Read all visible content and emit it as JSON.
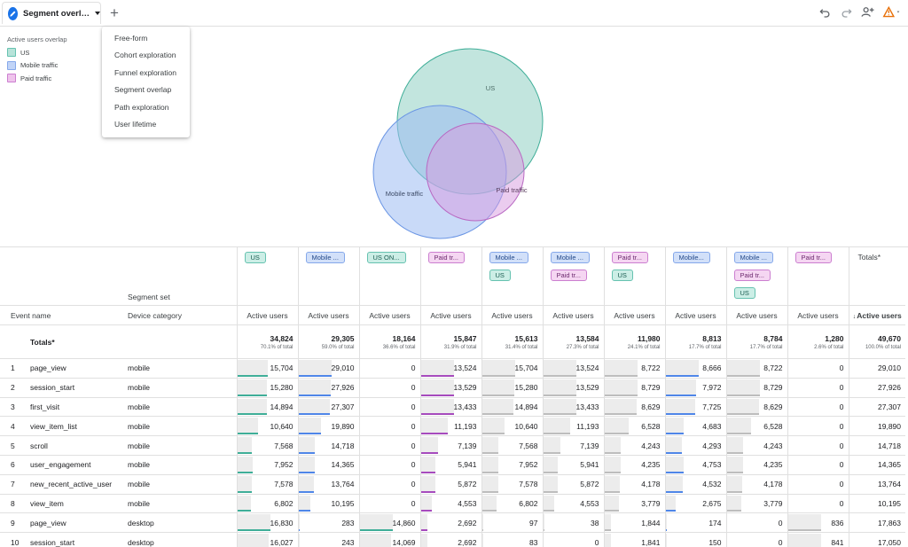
{
  "tab": {
    "title": "Segment overl…",
    "add_label": "+"
  },
  "colors": {
    "us": "#66c2b0",
    "mobile": "#85a8ea",
    "paid": "#cc7fd0",
    "accent": "#1a73e8"
  },
  "toolbar_icons": [
    "undo-icon",
    "redo-icon",
    "share-user-icon",
    "warning-icon"
  ],
  "menu": {
    "items": [
      "Free-form",
      "Cohort exploration",
      "Funnel exploration",
      "Segment overlap",
      "Path exploration",
      "User lifetime"
    ]
  },
  "legend": {
    "title": "Active users overlap",
    "items": [
      {
        "label": "US",
        "key": "us"
      },
      {
        "label": "Mobile traffic",
        "key": "mobile"
      },
      {
        "label": "Paid traffic",
        "key": "paid"
      }
    ]
  },
  "venn": {
    "labels": {
      "us": "US",
      "mobile": "Mobile traffic",
      "paid": "Paid traffic"
    }
  },
  "table": {
    "segment_set_label": "Segment set",
    "totals_header": "Totals*",
    "event_name_header": "Event name",
    "device_header": "Device category",
    "metric_header": "Active users",
    "metric_header_sorted": "Active users",
    "totals_label": "Totals*",
    "columns": [
      {
        "chips": [
          {
            "label": "US",
            "type": "us"
          }
        ]
      },
      {
        "chips": [
          {
            "label": "Mobile ...",
            "type": "mob"
          }
        ]
      },
      {
        "chips": [
          {
            "label": "US ON...",
            "type": "us"
          }
        ]
      },
      {
        "chips": [
          {
            "label": "Paid tr...",
            "type": "paid"
          }
        ]
      },
      {
        "chips": [
          {
            "label": "Mobile ...",
            "type": "mob"
          },
          {
            "label": "US",
            "type": "us"
          }
        ]
      },
      {
        "chips": [
          {
            "label": "Mobile ...",
            "type": "mob"
          },
          {
            "label": "Paid tr...",
            "type": "paid"
          }
        ]
      },
      {
        "chips": [
          {
            "label": "Paid tr...",
            "type": "paid"
          },
          {
            "label": "US",
            "type": "us"
          }
        ]
      },
      {
        "chips": [
          {
            "label": "Mobile...",
            "type": "mob"
          }
        ]
      },
      {
        "chips": [
          {
            "label": "Mobile ...",
            "type": "mob"
          },
          {
            "label": "Paid tr...",
            "type": "paid"
          },
          {
            "label": "US",
            "type": "us"
          }
        ]
      },
      {
        "chips": [
          {
            "label": "Paid tr...",
            "type": "paid"
          }
        ]
      }
    ],
    "totals": [
      {
        "value": "34,824",
        "pct": "70.1% of total"
      },
      {
        "value": "29,305",
        "pct": "59.0% of total"
      },
      {
        "value": "18,164",
        "pct": "36.6% of total"
      },
      {
        "value": "15,847",
        "pct": "31.9% of total"
      },
      {
        "value": "15,613",
        "pct": "31.4% of total"
      },
      {
        "value": "13,584",
        "pct": "27.3% of total"
      },
      {
        "value": "11,980",
        "pct": "24.1% of total"
      },
      {
        "value": "8,813",
        "pct": "17.7% of total"
      },
      {
        "value": "8,784",
        "pct": "17.7% of total"
      },
      {
        "value": "1,280",
        "pct": "2.6% of total"
      },
      {
        "value": "49,670",
        "pct": "100.0% of total"
      }
    ],
    "bar_colors": [
      "us",
      "mob",
      "us",
      "paid",
      "grey",
      "grey",
      "grey",
      "mob",
      "grey",
      "grey",
      "none"
    ],
    "rows": [
      {
        "idx": "1",
        "event": "page_view",
        "device": "mobile",
        "values": [
          "15,704",
          "29,010",
          "0",
          "13,524",
          "15,704",
          "13,524",
          "8,722",
          "8,666",
          "8,722",
          "0",
          "29,010"
        ]
      },
      {
        "idx": "2",
        "event": "session_start",
        "device": "mobile",
        "values": [
          "15,280",
          "27,926",
          "0",
          "13,529",
          "15,280",
          "13,529",
          "8,729",
          "7,972",
          "8,729",
          "0",
          "27,926"
        ]
      },
      {
        "idx": "3",
        "event": "first_visit",
        "device": "mobile",
        "values": [
          "14,894",
          "27,307",
          "0",
          "13,433",
          "14,894",
          "13,433",
          "8,629",
          "7,725",
          "8,629",
          "0",
          "27,307"
        ]
      },
      {
        "idx": "4",
        "event": "view_item_list",
        "device": "mobile",
        "values": [
          "10,640",
          "19,890",
          "0",
          "11,193",
          "10,640",
          "11,193",
          "6,528",
          "4,683",
          "6,528",
          "0",
          "19,890"
        ]
      },
      {
        "idx": "5",
        "event": "scroll",
        "device": "mobile",
        "values": [
          "7,568",
          "14,718",
          "0",
          "7,139",
          "7,568",
          "7,139",
          "4,243",
          "4,293",
          "4,243",
          "0",
          "14,718"
        ]
      },
      {
        "idx": "6",
        "event": "user_engagement",
        "device": "mobile",
        "values": [
          "7,952",
          "14,365",
          "0",
          "5,941",
          "7,952",
          "5,941",
          "4,235",
          "4,753",
          "4,235",
          "0",
          "14,365"
        ]
      },
      {
        "idx": "7",
        "event": "new_recent_active_user",
        "device": "mobile",
        "values": [
          "7,578",
          "13,764",
          "0",
          "5,872",
          "7,578",
          "5,872",
          "4,178",
          "4,532",
          "4,178",
          "0",
          "13,764"
        ]
      },
      {
        "idx": "8",
        "event": "view_item",
        "device": "mobile",
        "values": [
          "6,802",
          "10,195",
          "0",
          "4,553",
          "6,802",
          "4,553",
          "3,779",
          "2,675",
          "3,779",
          "0",
          "10,195"
        ]
      },
      {
        "idx": "9",
        "event": "page_view",
        "device": "desktop",
        "values": [
          "16,830",
          "283",
          "14,860",
          "2,692",
          "97",
          "38",
          "1,844",
          "174",
          "0",
          "836",
          "17,863"
        ]
      },
      {
        "idx": "10",
        "event": "session_start",
        "device": "desktop",
        "values": [
          "16,027",
          "243",
          "14,069",
          "2,692",
          "83",
          "0",
          "1,841",
          "150",
          "0",
          "841",
          "17,050"
        ]
      }
    ]
  }
}
